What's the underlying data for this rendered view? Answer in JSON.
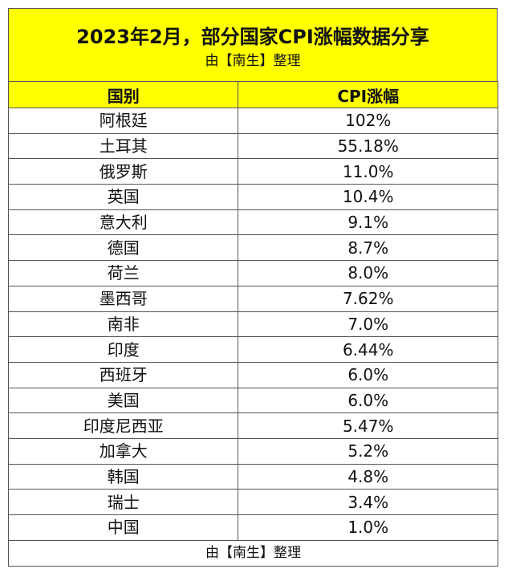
{
  "title": "2023年2月，部分国家CPI涨幅数据分享",
  "subtitle": "由【南生】整理",
  "headers": {
    "country": "国别",
    "cpi": "CPI涨幅"
  },
  "rows": [
    {
      "country": "阿根廷",
      "cpi": "102%"
    },
    {
      "country": "土耳其",
      "cpi": "55.18%"
    },
    {
      "country": "俄罗斯",
      "cpi": "11.0%"
    },
    {
      "country": "英国",
      "cpi": "10.4%"
    },
    {
      "country": "意大利",
      "cpi": "9.1%"
    },
    {
      "country": "德国",
      "cpi": "8.7%"
    },
    {
      "country": "荷兰",
      "cpi": "8.0%"
    },
    {
      "country": "墨西哥",
      "cpi": "7.62%"
    },
    {
      "country": "南非",
      "cpi": "7.0%"
    },
    {
      "country": "印度",
      "cpi": "6.44%"
    },
    {
      "country": "西班牙",
      "cpi": "6.0%"
    },
    {
      "country": "美国",
      "cpi": "6.0%"
    },
    {
      "country": "印度尼西亚",
      "cpi": "5.47%"
    },
    {
      "country": "加拿大",
      "cpi": "5.2%"
    },
    {
      "country": "韩国",
      "cpi": "4.8%"
    },
    {
      "country": "瑞士",
      "cpi": "3.4%"
    },
    {
      "country": "中国",
      "cpi": "1.0%"
    }
  ],
  "footer": "由【南生】整理",
  "colors": {
    "header_fill": "#ffff00",
    "border": "#555555"
  }
}
